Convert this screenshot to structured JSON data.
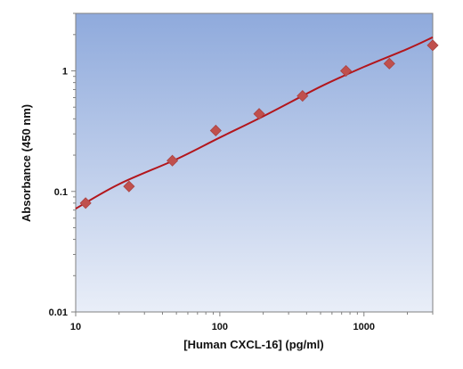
{
  "chart_data": {
    "type": "scatter",
    "title": "",
    "xlabel": "[Human CXCL-16] (pg/ml)",
    "ylabel": "Absorbance (450 nm)",
    "x_scale": "log",
    "y_scale": "log",
    "xlim": [
      10,
      3000
    ],
    "ylim": [
      0.01,
      3
    ],
    "x_ticks": [
      {
        "value": 10,
        "label": "10"
      },
      {
        "value": 100,
        "label": "100"
      },
      {
        "value": 1000,
        "label": "1000"
      }
    ],
    "y_ticks": [
      {
        "value": 0.01,
        "label": "0.01"
      },
      {
        "value": 0.1,
        "label": "0.1"
      },
      {
        "value": 1,
        "label": "1"
      }
    ],
    "grid": false,
    "legend": "none",
    "series": [
      {
        "marker": "diamond",
        "color": "#c0504d",
        "points": [
          {
            "x": 11.72,
            "y": 0.08
          },
          {
            "x": 23.44,
            "y": 0.11
          },
          {
            "x": 46.88,
            "y": 0.18
          },
          {
            "x": 93.75,
            "y": 0.32
          },
          {
            "x": 187.5,
            "y": 0.44
          },
          {
            "x": 375,
            "y": 0.62
          },
          {
            "x": 750,
            "y": 1.0
          },
          {
            "x": 1500,
            "y": 1.15
          },
          {
            "x": 3000,
            "y": 1.63
          }
        ]
      }
    ],
    "fit_line": {
      "color": "#b3161c",
      "points": [
        {
          "x": 10,
          "y": 0.072
        },
        {
          "x": 20,
          "y": 0.115
        },
        {
          "x": 50,
          "y": 0.185
        },
        {
          "x": 100,
          "y": 0.28
        },
        {
          "x": 200,
          "y": 0.42
        },
        {
          "x": 500,
          "y": 0.74
        },
        {
          "x": 1000,
          "y": 1.08
        },
        {
          "x": 2000,
          "y": 1.52
        },
        {
          "x": 3000,
          "y": 1.9
        }
      ]
    },
    "plot_background": {
      "top": "#8faadc",
      "bottom": "#e9eef8"
    }
  }
}
